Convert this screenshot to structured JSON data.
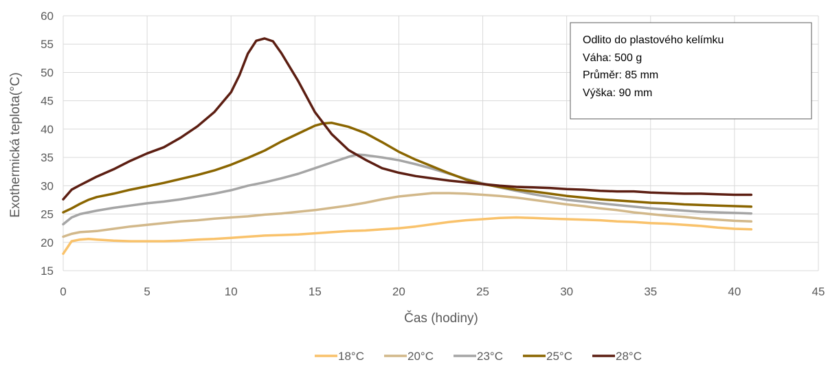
{
  "chart_data": {
    "type": "line",
    "title": "",
    "xlabel": "Čas (hodiny)",
    "ylabel": "Exothermická teplota(°C)",
    "xlim": [
      0,
      45
    ],
    "ylim": [
      15,
      60
    ],
    "x_ticks": [
      "0",
      "5",
      "10",
      "15",
      "20",
      "25",
      "30",
      "35",
      "40",
      "45"
    ],
    "y_ticks": [
      "15",
      "20",
      "25",
      "30",
      "35",
      "40",
      "45",
      "50",
      "55",
      "60"
    ],
    "grid": true,
    "legend_position": "bottom",
    "annotation": {
      "lines": [
        "Odlito do plastového kelímku",
        "Váha: 500 g",
        "Průměr: 85 mm",
        "Výška: 90 mm"
      ]
    },
    "series": [
      {
        "name": "18°C",
        "color": "#F9C26B",
        "points": [
          [
            0,
            18
          ],
          [
            0.5,
            20.2
          ],
          [
            1,
            20.5
          ],
          [
            1.5,
            20.6
          ],
          [
            2,
            20.5
          ],
          [
            3,
            20.3
          ],
          [
            4,
            20.2
          ],
          [
            5,
            20.2
          ],
          [
            6,
            20.2
          ],
          [
            7,
            20.3
          ],
          [
            8,
            20.5
          ],
          [
            9,
            20.6
          ],
          [
            10,
            20.8
          ],
          [
            11,
            21
          ],
          [
            12,
            21.2
          ],
          [
            13,
            21.3
          ],
          [
            14,
            21.4
          ],
          [
            15,
            21.6
          ],
          [
            16,
            21.8
          ],
          [
            17,
            22
          ],
          [
            18,
            22.1
          ],
          [
            19,
            22.3
          ],
          [
            20,
            22.5
          ],
          [
            21,
            22.8
          ],
          [
            22,
            23.2
          ],
          [
            23,
            23.6
          ],
          [
            24,
            23.9
          ],
          [
            25,
            24.1
          ],
          [
            26,
            24.3
          ],
          [
            27,
            24.4
          ],
          [
            28,
            24.3
          ],
          [
            29,
            24.2
          ],
          [
            30,
            24.1
          ],
          [
            31,
            24
          ],
          [
            32,
            23.9
          ],
          [
            33,
            23.7
          ],
          [
            34,
            23.6
          ],
          [
            35,
            23.4
          ],
          [
            36,
            23.3
          ],
          [
            37,
            23.1
          ],
          [
            38,
            22.9
          ],
          [
            39,
            22.6
          ],
          [
            40,
            22.4
          ],
          [
            41,
            22.3
          ]
        ]
      },
      {
        "name": "20°C",
        "color": "#D2B88A",
        "points": [
          [
            0,
            21
          ],
          [
            0.5,
            21.5
          ],
          [
            1,
            21.8
          ],
          [
            2,
            22
          ],
          [
            3,
            22.4
          ],
          [
            4,
            22.8
          ],
          [
            5,
            23.1
          ],
          [
            6,
            23.4
          ],
          [
            7,
            23.7
          ],
          [
            8,
            23.9
          ],
          [
            9,
            24.2
          ],
          [
            10,
            24.4
          ],
          [
            11,
            24.6
          ],
          [
            12,
            24.9
          ],
          [
            13,
            25.1
          ],
          [
            14,
            25.4
          ],
          [
            15,
            25.7
          ],
          [
            16,
            26.1
          ],
          [
            17,
            26.5
          ],
          [
            18,
            27
          ],
          [
            19,
            27.6
          ],
          [
            20,
            28.1
          ],
          [
            21,
            28.4
          ],
          [
            22,
            28.7
          ],
          [
            23,
            28.7
          ],
          [
            24,
            28.6
          ],
          [
            25,
            28.4
          ],
          [
            26,
            28.2
          ],
          [
            27,
            27.9
          ],
          [
            28,
            27.5
          ],
          [
            29,
            27.1
          ],
          [
            30,
            26.7
          ],
          [
            31,
            26.4
          ],
          [
            32,
            26
          ],
          [
            33,
            25.7
          ],
          [
            34,
            25.3
          ],
          [
            35,
            25
          ],
          [
            36,
            24.7
          ],
          [
            37,
            24.5
          ],
          [
            38,
            24.2
          ],
          [
            39,
            24
          ],
          [
            40,
            23.8
          ],
          [
            41,
            23.7
          ]
        ]
      },
      {
        "name": "23°C",
        "color": "#A5A5A5",
        "points": [
          [
            0,
            23.2
          ],
          [
            0.5,
            24.4
          ],
          [
            1,
            25
          ],
          [
            2,
            25.6
          ],
          [
            3,
            26.1
          ],
          [
            4,
            26.5
          ],
          [
            5,
            26.9
          ],
          [
            6,
            27.2
          ],
          [
            7,
            27.6
          ],
          [
            8,
            28.1
          ],
          [
            9,
            28.6
          ],
          [
            10,
            29.2
          ],
          [
            11,
            30
          ],
          [
            12,
            30.6
          ],
          [
            13,
            31.3
          ],
          [
            14,
            32.1
          ],
          [
            15,
            33.1
          ],
          [
            16,
            34.1
          ],
          [
            17,
            35.1
          ],
          [
            17.5,
            35.5
          ],
          [
            18,
            35.4
          ],
          [
            19,
            35
          ],
          [
            20,
            34.5
          ],
          [
            21,
            33.8
          ],
          [
            22,
            33
          ],
          [
            23,
            32.1
          ],
          [
            24,
            31.2
          ],
          [
            25,
            30.4
          ],
          [
            26,
            29.7
          ],
          [
            27,
            29.1
          ],
          [
            28,
            28.5
          ],
          [
            29,
            28
          ],
          [
            30,
            27.5
          ],
          [
            31,
            27.2
          ],
          [
            32,
            26.9
          ],
          [
            33,
            26.6
          ],
          [
            34,
            26.3
          ],
          [
            35,
            26
          ],
          [
            36,
            25.8
          ],
          [
            37,
            25.6
          ],
          [
            38,
            25.4
          ],
          [
            39,
            25.3
          ],
          [
            40,
            25.2
          ],
          [
            41,
            25.1
          ]
        ]
      },
      {
        "name": "25°C",
        "color": "#8A6500",
        "points": [
          [
            0,
            25.3
          ],
          [
            0.5,
            26
          ],
          [
            1,
            26.8
          ],
          [
            1.5,
            27.5
          ],
          [
            2,
            28
          ],
          [
            3,
            28.6
          ],
          [
            4,
            29.3
          ],
          [
            5,
            29.9
          ],
          [
            6,
            30.5
          ],
          [
            7,
            31.2
          ],
          [
            8,
            31.9
          ],
          [
            9,
            32.7
          ],
          [
            10,
            33.7
          ],
          [
            11,
            34.9
          ],
          [
            12,
            36.2
          ],
          [
            13,
            37.8
          ],
          [
            14,
            39.2
          ],
          [
            15,
            40.6
          ],
          [
            15.5,
            41
          ],
          [
            16,
            41.1
          ],
          [
            17,
            40.4
          ],
          [
            18,
            39.3
          ],
          [
            19,
            37.7
          ],
          [
            20,
            36
          ],
          [
            21,
            34.6
          ],
          [
            22,
            33.4
          ],
          [
            23,
            32.2
          ],
          [
            24,
            31.1
          ],
          [
            25,
            30.3
          ],
          [
            26,
            29.8
          ],
          [
            27,
            29.3
          ],
          [
            28,
            29
          ],
          [
            29,
            28.6
          ],
          [
            30,
            28.2
          ],
          [
            31,
            27.9
          ],
          [
            32,
            27.6
          ],
          [
            33,
            27.4
          ],
          [
            34,
            27.2
          ],
          [
            35,
            27
          ],
          [
            36,
            26.9
          ],
          [
            37,
            26.7
          ],
          [
            38,
            26.6
          ],
          [
            39,
            26.5
          ],
          [
            40,
            26.4
          ],
          [
            41,
            26.3
          ]
        ]
      },
      {
        "name": "28°C",
        "color": "#5C1E12",
        "points": [
          [
            0,
            27.6
          ],
          [
            0.5,
            29.3
          ],
          [
            1,
            30.1
          ],
          [
            2,
            31.6
          ],
          [
            3,
            32.9
          ],
          [
            4,
            34.4
          ],
          [
            5,
            35.7
          ],
          [
            6,
            36.8
          ],
          [
            7,
            38.5
          ],
          [
            8,
            40.5
          ],
          [
            9,
            43
          ],
          [
            10,
            46.5
          ],
          [
            10.5,
            49.5
          ],
          [
            11,
            53.3
          ],
          [
            11.5,
            55.6
          ],
          [
            12,
            56
          ],
          [
            12.5,
            55.5
          ],
          [
            13,
            53.4
          ],
          [
            14,
            48.5
          ],
          [
            15,
            43
          ],
          [
            16,
            39.1
          ],
          [
            17,
            36.3
          ],
          [
            18,
            34.6
          ],
          [
            19,
            33.1
          ],
          [
            20,
            32.3
          ],
          [
            21,
            31.7
          ],
          [
            22,
            31.3
          ],
          [
            23,
            30.9
          ],
          [
            24,
            30.6
          ],
          [
            25,
            30.3
          ],
          [
            26,
            30
          ],
          [
            27,
            29.8
          ],
          [
            28,
            29.7
          ],
          [
            29,
            29.6
          ],
          [
            30,
            29.4
          ],
          [
            31,
            29.3
          ],
          [
            32,
            29.1
          ],
          [
            33,
            29
          ],
          [
            34,
            29
          ],
          [
            35,
            28.8
          ],
          [
            36,
            28.7
          ],
          [
            37,
            28.6
          ],
          [
            38,
            28.6
          ],
          [
            39,
            28.5
          ],
          [
            40,
            28.4
          ],
          [
            41,
            28.4
          ]
        ]
      }
    ]
  }
}
